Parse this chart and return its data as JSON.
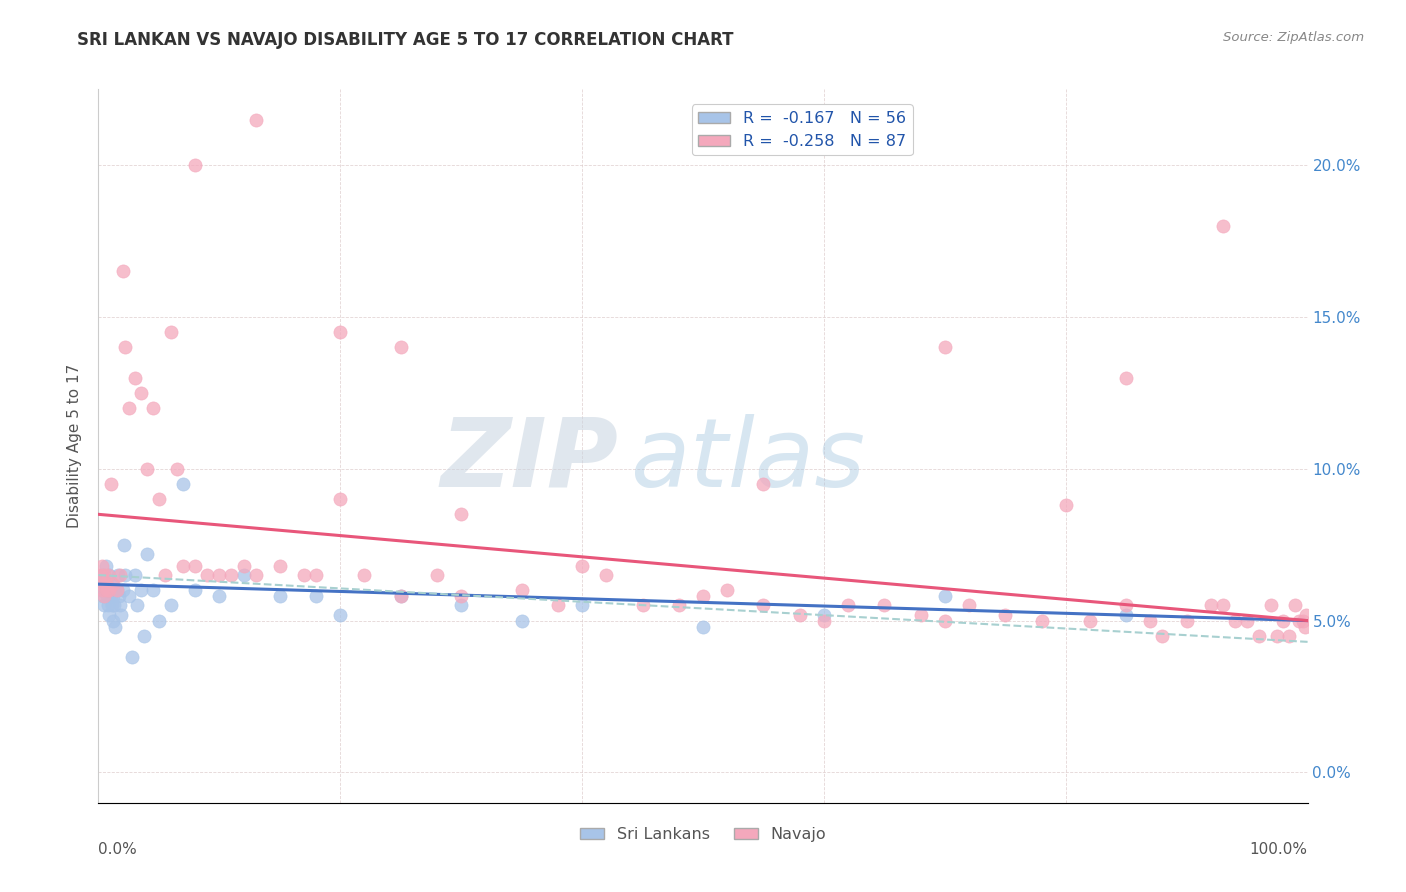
{
  "title": "SRI LANKAN VS NAVAJO DISABILITY AGE 5 TO 17 CORRELATION CHART",
  "source": "Source: ZipAtlas.com",
  "ylabel": "Disability Age 5 to 17",
  "ytick_values": [
    0.0,
    0.05,
    0.1,
    0.15,
    0.2
  ],
  "ytick_labels_right": [
    "0.0%",
    "5.0%",
    "10.0%",
    "15.0%",
    "20.0%"
  ],
  "xlim": [
    0.0,
    1.0
  ],
  "ylim": [
    -0.01,
    0.225
  ],
  "sri_R": -0.167,
  "sri_N": 56,
  "navajo_R": -0.258,
  "navajo_N": 87,
  "sri_color": "#A8C4E8",
  "navajo_color": "#F4A8BC",
  "sri_line_color": "#4472C4",
  "navajo_line_color": "#E8567A",
  "dashed_line_color": "#A8D0D0",
  "watermark_zip": "ZIP",
  "watermark_atlas": "atlas",
  "watermark_color": "#C8D8E8",
  "background_color": "#FFFFFF",
  "plot_bg_color": "#FFFFFF",
  "sri_x": [
    0.001,
    0.002,
    0.003,
    0.004,
    0.005,
    0.005,
    0.006,
    0.006,
    0.007,
    0.007,
    0.008,
    0.008,
    0.009,
    0.009,
    0.01,
    0.01,
    0.011,
    0.011,
    0.012,
    0.012,
    0.013,
    0.013,
    0.014,
    0.015,
    0.016,
    0.017,
    0.018,
    0.019,
    0.02,
    0.021,
    0.022,
    0.025,
    0.028,
    0.03,
    0.032,
    0.035,
    0.038,
    0.04,
    0.045,
    0.05,
    0.06,
    0.07,
    0.08,
    0.1,
    0.12,
    0.15,
    0.18,
    0.2,
    0.25,
    0.3,
    0.35,
    0.4,
    0.5,
    0.6,
    0.7,
    0.85
  ],
  "sri_y": [
    0.062,
    0.06,
    0.065,
    0.058,
    0.063,
    0.055,
    0.06,
    0.068,
    0.058,
    0.062,
    0.055,
    0.06,
    0.052,
    0.065,
    0.058,
    0.06,
    0.055,
    0.062,
    0.05,
    0.058,
    0.06,
    0.055,
    0.048,
    0.06,
    0.065,
    0.058,
    0.055,
    0.052,
    0.06,
    0.075,
    0.065,
    0.058,
    0.038,
    0.065,
    0.055,
    0.06,
    0.045,
    0.072,
    0.06,
    0.05,
    0.055,
    0.095,
    0.06,
    0.058,
    0.065,
    0.058,
    0.058,
    0.052,
    0.058,
    0.055,
    0.05,
    0.055,
    0.048,
    0.052,
    0.058,
    0.052
  ],
  "navajo_x": [
    0.001,
    0.002,
    0.003,
    0.004,
    0.005,
    0.005,
    0.006,
    0.007,
    0.008,
    0.009,
    0.01,
    0.012,
    0.015,
    0.018,
    0.02,
    0.022,
    0.025,
    0.03,
    0.035,
    0.04,
    0.045,
    0.05,
    0.055,
    0.06,
    0.065,
    0.07,
    0.08,
    0.09,
    0.1,
    0.11,
    0.12,
    0.13,
    0.15,
    0.17,
    0.18,
    0.2,
    0.22,
    0.25,
    0.28,
    0.3,
    0.35,
    0.38,
    0.4,
    0.42,
    0.45,
    0.48,
    0.5,
    0.52,
    0.55,
    0.58,
    0.6,
    0.62,
    0.65,
    0.68,
    0.7,
    0.72,
    0.75,
    0.78,
    0.8,
    0.82,
    0.85,
    0.87,
    0.88,
    0.9,
    0.92,
    0.93,
    0.94,
    0.95,
    0.96,
    0.97,
    0.975,
    0.98,
    0.985,
    0.99,
    0.993,
    0.996,
    0.998,
    0.999,
    0.08,
    0.13,
    0.2,
    0.25,
    0.3,
    0.55,
    0.7,
    0.85,
    0.93
  ],
  "navajo_y": [
    0.065,
    0.062,
    0.068,
    0.06,
    0.065,
    0.058,
    0.062,
    0.06,
    0.065,
    0.06,
    0.095,
    0.062,
    0.06,
    0.065,
    0.165,
    0.14,
    0.12,
    0.13,
    0.125,
    0.1,
    0.12,
    0.09,
    0.065,
    0.145,
    0.1,
    0.068,
    0.068,
    0.065,
    0.065,
    0.065,
    0.068,
    0.065,
    0.068,
    0.065,
    0.065,
    0.09,
    0.065,
    0.058,
    0.065,
    0.058,
    0.06,
    0.055,
    0.068,
    0.065,
    0.055,
    0.055,
    0.058,
    0.06,
    0.055,
    0.052,
    0.05,
    0.055,
    0.055,
    0.052,
    0.05,
    0.055,
    0.052,
    0.05,
    0.088,
    0.05,
    0.055,
    0.05,
    0.045,
    0.05,
    0.055,
    0.055,
    0.05,
    0.05,
    0.045,
    0.055,
    0.045,
    0.05,
    0.045,
    0.055,
    0.05,
    0.05,
    0.048,
    0.052,
    0.2,
    0.215,
    0.145,
    0.14,
    0.085,
    0.095,
    0.14,
    0.13,
    0.18
  ],
  "sri_trend_start": 0.062,
  "sri_trend_end": 0.05,
  "navajo_trend_start": 0.085,
  "navajo_trend_end": 0.05,
  "dashed_trend_start": 0.065,
  "dashed_trend_end": 0.043
}
